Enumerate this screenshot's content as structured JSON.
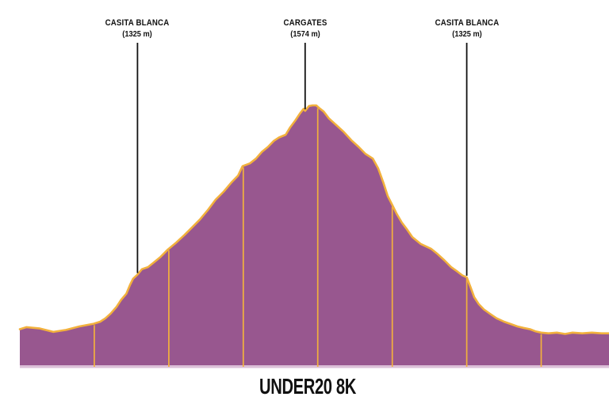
{
  "colors": {
    "fill": "#98578f",
    "stroke": "#f2b13d",
    "baseline_strip": "#dcc0d8",
    "annotation_line": "#111111",
    "text": "#111111",
    "background": "#ffffff"
  },
  "chart_data": {
    "type": "area",
    "title": "UNDER20 8K",
    "xlabel": "",
    "ylabel": "",
    "x_unit": "km",
    "y_unit": "m",
    "x_range_km": [
      0,
      7.91
    ],
    "y_range_m": [
      1192,
      1574
    ],
    "legend": "none",
    "grid": "vertical km marker lines only",
    "km_gridlines": [
      1,
      2,
      3,
      4,
      5,
      6,
      7
    ],
    "annotations": [
      {
        "label": "CASITA BLANCA",
        "sublabel": "(1325 m)",
        "km": 1.58,
        "elevation_m": 1325
      },
      {
        "label": "CARGATES",
        "sublabel": "(1574 m)",
        "km": 3.83,
        "elevation_m": 1574
      },
      {
        "label": "CASITA BLANCA",
        "sublabel": "(1325 m)",
        "km": 6.0,
        "elevation_m": 1325
      }
    ],
    "profile": [
      [
        0.0,
        1246
      ],
      [
        0.09,
        1249
      ],
      [
        0.27,
        1247
      ],
      [
        0.45,
        1242
      ],
      [
        0.62,
        1245
      ],
      [
        0.8,
        1250
      ],
      [
        0.99,
        1254
      ],
      [
        1.08,
        1257
      ],
      [
        1.15,
        1262
      ],
      [
        1.22,
        1269
      ],
      [
        1.3,
        1279
      ],
      [
        1.36,
        1289
      ],
      [
        1.43,
        1298
      ],
      [
        1.48,
        1311
      ],
      [
        1.52,
        1320
      ],
      [
        1.58,
        1326
      ],
      [
        1.64,
        1334
      ],
      [
        1.72,
        1337
      ],
      [
        1.8,
        1344
      ],
      [
        1.89,
        1352
      ],
      [
        1.99,
        1363
      ],
      [
        2.1,
        1373
      ],
      [
        2.21,
        1384
      ],
      [
        2.31,
        1395
      ],
      [
        2.42,
        1407
      ],
      [
        2.52,
        1420
      ],
      [
        2.63,
        1436
      ],
      [
        2.74,
        1448
      ],
      [
        2.84,
        1461
      ],
      [
        2.93,
        1471
      ],
      [
        2.99,
        1485
      ],
      [
        3.09,
        1489
      ],
      [
        3.17,
        1496
      ],
      [
        3.25,
        1506
      ],
      [
        3.33,
        1513
      ],
      [
        3.41,
        1522
      ],
      [
        3.48,
        1527
      ],
      [
        3.57,
        1531
      ],
      [
        3.63,
        1542
      ],
      [
        3.7,
        1552
      ],
      [
        3.76,
        1562
      ],
      [
        3.81,
        1569
      ],
      [
        3.83,
        1566
      ],
      [
        3.88,
        1573
      ],
      [
        3.93,
        1574
      ],
      [
        3.98,
        1574
      ],
      [
        4.02,
        1570
      ],
      [
        4.08,
        1565
      ],
      [
        4.15,
        1555
      ],
      [
        4.25,
        1545
      ],
      [
        4.35,
        1535
      ],
      [
        4.45,
        1523
      ],
      [
        4.55,
        1513
      ],
      [
        4.64,
        1503
      ],
      [
        4.74,
        1496
      ],
      [
        4.81,
        1482
      ],
      [
        4.88,
        1461
      ],
      [
        4.94,
        1441
      ],
      [
        5.0,
        1428
      ],
      [
        5.06,
        1415
      ],
      [
        5.13,
        1402
      ],
      [
        5.2,
        1392
      ],
      [
        5.27,
        1381
      ],
      [
        5.38,
        1371
      ],
      [
        5.52,
        1364
      ],
      [
        5.61,
        1356
      ],
      [
        5.7,
        1347
      ],
      [
        5.79,
        1337
      ],
      [
        5.88,
        1330
      ],
      [
        5.94,
        1325
      ],
      [
        6.0,
        1322
      ],
      [
        6.05,
        1308
      ],
      [
        6.1,
        1293
      ],
      [
        6.16,
        1283
      ],
      [
        6.23,
        1275
      ],
      [
        6.32,
        1268
      ],
      [
        6.4,
        1262
      ],
      [
        6.5,
        1257
      ],
      [
        6.58,
        1254
      ],
      [
        6.68,
        1250
      ],
      [
        6.76,
        1248
      ],
      [
        6.85,
        1246
      ],
      [
        6.92,
        1243
      ],
      [
        7.0,
        1241
      ],
      [
        7.1,
        1240
      ],
      [
        7.21,
        1241
      ],
      [
        7.32,
        1239
      ],
      [
        7.42,
        1241
      ],
      [
        7.55,
        1240
      ],
      [
        7.68,
        1241
      ],
      [
        7.81,
        1240
      ],
      [
        7.91,
        1240
      ]
    ]
  }
}
